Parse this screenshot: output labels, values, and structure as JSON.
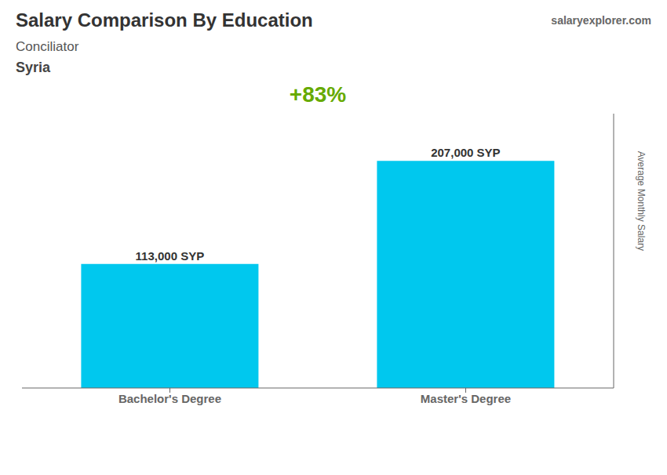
{
  "chart_data": {
    "type": "bar",
    "title": "Salary Comparison By Education",
    "subtitle": "Conciliator",
    "annotations": [
      "Syria",
      "+83%",
      "salaryexplorer.com"
    ],
    "categories": [
      "Bachelor's Degree",
      "Master's Degree"
    ],
    "values": [
      113000,
      207000
    ],
    "value_labels": [
      "113,000 SYP",
      "207,000 SYP"
    ],
    "data_labels": true,
    "color": "#00C8EE",
    "ylabel": "Average Monthly Salary",
    "ylim": [
      0,
      250000
    ],
    "tick_labels": "x",
    "grid": false
  }
}
